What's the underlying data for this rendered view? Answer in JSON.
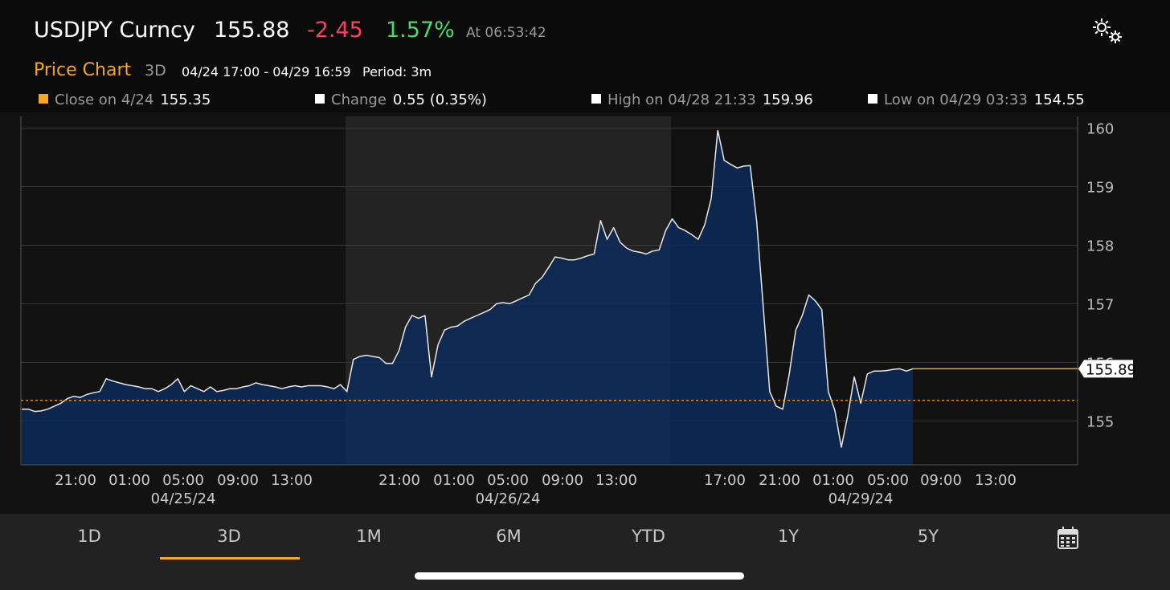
{
  "header": {
    "ticker": "USDJPY Curncy",
    "price": "155.88",
    "change": "-2.45",
    "change_pct": "1.57%",
    "time": "At 06:53:42",
    "settings_icon": "gear-icon"
  },
  "chart_header": {
    "title": "Price Chart",
    "range": "3D",
    "dates": "04/24 17:00 - 04/29 16:59",
    "period": "Period: 3m"
  },
  "stats": [
    {
      "label": "Close on 4/24",
      "value": "155.35",
      "color": "#f5a623"
    },
    {
      "label": "Change",
      "value": "0.55 (0.35%)",
      "color": "#ffffff"
    },
    {
      "label": "High on 04/28 21:33",
      "value": "159.96",
      "color": "#ffffff"
    },
    {
      "label": "Low on 04/29 03:33",
      "value": "154.55",
      "color": "#ffffff"
    }
  ],
  "chart_data": {
    "type": "area",
    "title": "",
    "ylim": [
      154.25,
      160.2
    ],
    "y_ticks": [
      155,
      156,
      157,
      158,
      159,
      160
    ],
    "x_ticks": [
      "21:00",
      "01:00",
      "05:00",
      "09:00",
      "13:00",
      "21:00",
      "01:00",
      "05:00",
      "09:00",
      "13:00",
      "17:00",
      "21:00",
      "01:00",
      "05:00",
      "09:00",
      "13:00"
    ],
    "date_labels": [
      "04/25/24",
      "04/26/24",
      "04/29/24"
    ],
    "reference_line": {
      "value": 155.35,
      "label": "Close on 4/24",
      "color": "#f5a623"
    },
    "last_value": {
      "value": 155.89,
      "label": "155.89",
      "color": "#f5a623"
    },
    "series": [
      {
        "values": [
          155.2,
          155.2,
          155.16,
          155.17,
          155.2,
          155.25,
          155.3,
          155.38,
          155.42,
          155.4,
          155.45,
          155.48,
          155.5,
          155.72,
          155.68,
          155.65,
          155.62,
          155.6,
          155.58,
          155.55,
          155.55,
          155.5,
          155.55,
          155.62,
          155.72,
          155.5,
          155.6,
          155.55,
          155.5,
          155.58,
          155.5,
          155.52,
          155.55,
          155.55,
          155.58,
          155.6,
          155.65,
          155.62,
          155.6,
          155.58,
          155.55,
          155.58,
          155.6,
          155.58,
          155.6,
          155.6,
          155.6,
          155.58,
          155.55,
          155.62,
          155.5,
          156.05,
          156.1,
          156.12,
          156.1,
          156.08,
          155.98,
          155.98,
          156.2,
          156.6,
          156.8,
          156.75,
          156.8,
          155.75,
          156.3,
          156.55,
          156.6,
          156.62,
          156.7,
          156.75,
          156.8,
          156.85,
          156.9,
          157.0,
          157.02,
          157.0,
          157.05,
          157.1,
          157.15,
          157.35,
          157.45,
          157.62,
          157.8,
          157.78,
          157.75,
          157.75,
          157.78,
          157.82,
          157.85,
          158.42,
          158.1,
          158.3,
          158.05,
          157.95,
          157.9,
          157.88,
          157.85,
          157.9,
          157.92,
          158.25,
          158.45,
          158.3,
          158.25,
          158.18,
          158.1,
          158.35,
          158.8,
          159.96,
          159.45,
          159.38,
          159.32,
          159.35,
          159.36,
          158.4,
          156.95,
          155.5,
          155.25,
          155.2,
          155.8,
          156.55,
          156.8,
          157.15,
          157.05,
          156.9,
          155.5,
          155.18,
          154.55,
          155.1,
          155.75,
          155.3,
          155.8,
          155.85,
          155.85,
          155.86,
          155.88,
          155.89,
          155.85,
          155.89
        ]
      }
    ]
  },
  "tabs": [
    "1D",
    "3D",
    "1M",
    "6M",
    "YTD",
    "1Y",
    "5Y"
  ],
  "active_tab": "3D",
  "calendar_icon": "calendar-icon"
}
